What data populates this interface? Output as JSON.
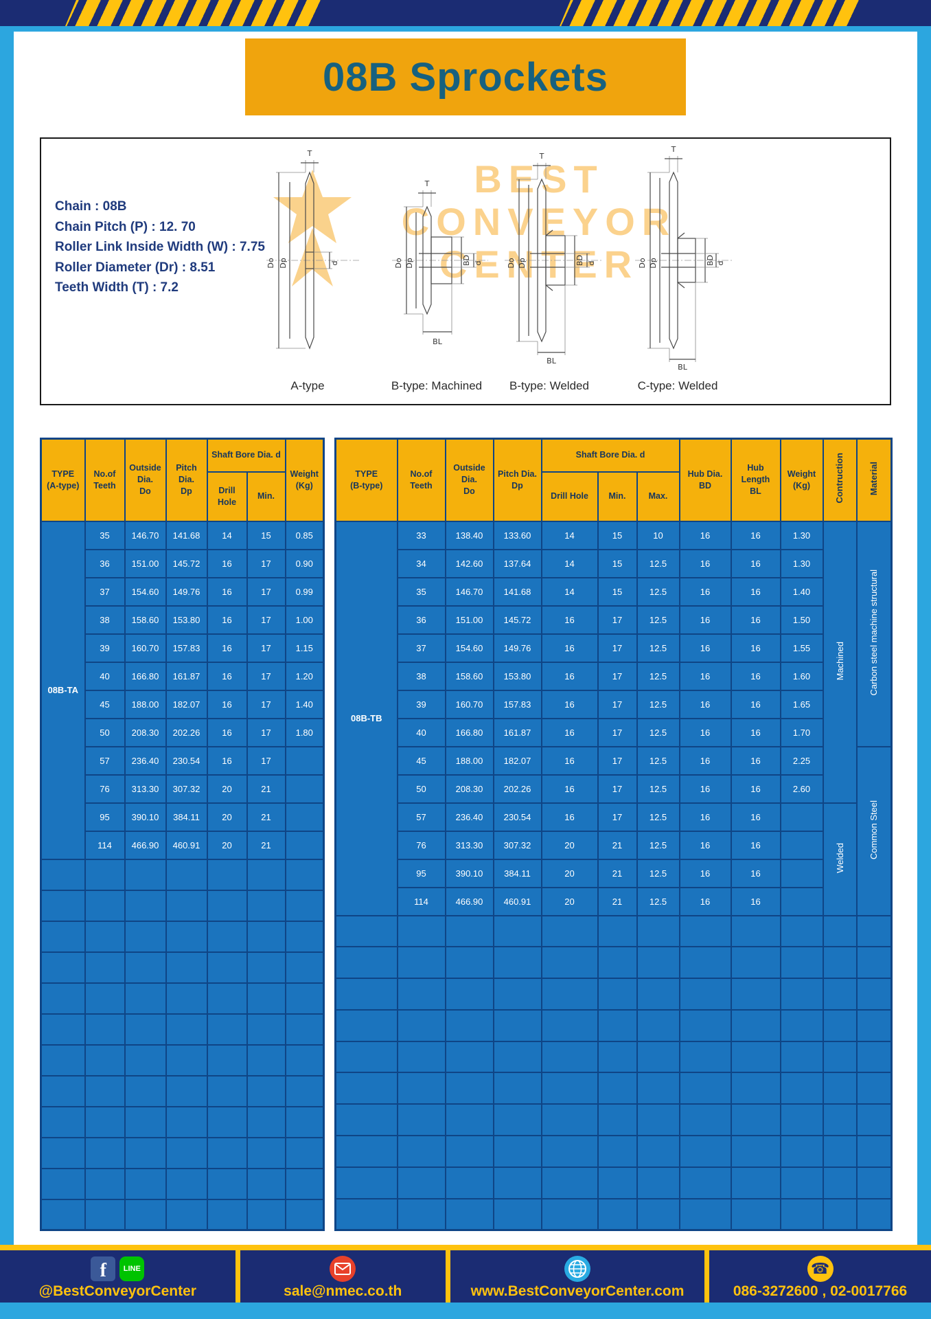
{
  "title": "08B Sprockets",
  "colors": {
    "accent_yellow": "#FFC20E",
    "navy": "#1B2C73",
    "table_blue": "#1B74BE",
    "grid_dark_blue": "#0F4586",
    "header_amber": "#F5B10C",
    "title_amber": "#F0A40D",
    "title_text": "#17617F",
    "background_blue": "#2CA6DF",
    "watermark_orange": "#F7A61B"
  },
  "specs": {
    "lines": [
      "Chain : 08B",
      "Chain Pitch (P) : 12. 70",
      "Roller Link Inside Width (W) : 7.75",
      "Roller Diameter (Dr) : 8.51",
      "Teeth Width (T) : 7.2"
    ]
  },
  "watermark": {
    "line1": "BEST",
    "line2": "CONVEYOR",
    "line3": "CENTER"
  },
  "diagrams": {
    "labels": [
      "A-type",
      "B-type: Machined",
      "B-type: Welded",
      "C-type: Welded"
    ],
    "dims": {
      "T": "T",
      "Do": "Do",
      "Dp": "Dp",
      "d": "d",
      "BD": "BD",
      "BL": "BL"
    }
  },
  "table_a": {
    "type_label": "08B-TA",
    "header": {
      "type": "TYPE\n(A-type)",
      "teeth": "No.of\nTeeth",
      "outside": "Outside\nDia.\nDo",
      "pitch": "Pitch Dia.\nDp",
      "shaft_bore": "Shaft Bore Dia. d",
      "drill_hole": "Drill Hole",
      "min": "Min.",
      "weight": "Weight\n(Kg)"
    },
    "rows": [
      [
        "35",
        "146.70",
        "141.68",
        "14",
        "15",
        "0.85"
      ],
      [
        "36",
        "151.00",
        "145.72",
        "16",
        "17",
        "0.90"
      ],
      [
        "37",
        "154.60",
        "149.76",
        "16",
        "17",
        "0.99"
      ],
      [
        "38",
        "158.60",
        "153.80",
        "16",
        "17",
        "1.00"
      ],
      [
        "39",
        "160.70",
        "157.83",
        "16",
        "17",
        "1.15"
      ],
      [
        "40",
        "166.80",
        "161.87",
        "16",
        "17",
        "1.20"
      ],
      [
        "45",
        "188.00",
        "182.07",
        "16",
        "17",
        "1.40"
      ],
      [
        "50",
        "208.30",
        "202.26",
        "16",
        "17",
        "1.80"
      ],
      [
        "57",
        "236.40",
        "230.54",
        "16",
        "17",
        ""
      ],
      [
        "76",
        "313.30",
        "307.32",
        "20",
        "21",
        ""
      ],
      [
        "95",
        "390.10",
        "384.11",
        "20",
        "21",
        ""
      ],
      [
        "114",
        "466.90",
        "460.91",
        "20",
        "21",
        ""
      ]
    ],
    "empty_row_count": 12
  },
  "table_b": {
    "type_label": "08B-TB",
    "header": {
      "type": "TYPE\n(B-type)",
      "teeth": "No.of\nTeeth",
      "outside": "Outside\nDia.\nDo",
      "pitch": "Pitch Dia.\nDp",
      "shaft_bore": "Shaft Bore Dia. d",
      "drill_hole": "Drill Hole",
      "min": "Min.",
      "max": "Max.",
      "hub_dia": "Hub Dia.\nBD",
      "hub_length": "Hub\nLength\nBL",
      "weight": "Weight\n(Kg)",
      "construction": "Contruction",
      "material": "Material"
    },
    "rows": [
      [
        "33",
        "138.40",
        "133.60",
        "14",
        "15",
        "10",
        "16",
        "16",
        "1.30"
      ],
      [
        "34",
        "142.60",
        "137.64",
        "14",
        "15",
        "12.5",
        "16",
        "16",
        "1.30"
      ],
      [
        "35",
        "146.70",
        "141.68",
        "14",
        "15",
        "12.5",
        "16",
        "16",
        "1.40"
      ],
      [
        "36",
        "151.00",
        "145.72",
        "16",
        "17",
        "12.5",
        "16",
        "16",
        "1.50"
      ],
      [
        "37",
        "154.60",
        "149.76",
        "16",
        "17",
        "12.5",
        "16",
        "16",
        "1.55"
      ],
      [
        "38",
        "158.60",
        "153.80",
        "16",
        "17",
        "12.5",
        "16",
        "16",
        "1.60"
      ],
      [
        "39",
        "160.70",
        "157.83",
        "16",
        "17",
        "12.5",
        "16",
        "16",
        "1.65"
      ],
      [
        "40",
        "166.80",
        "161.87",
        "16",
        "17",
        "12.5",
        "16",
        "16",
        "1.70"
      ],
      [
        "45",
        "188.00",
        "182.07",
        "16",
        "17",
        "12.5",
        "16",
        "16",
        "2.25"
      ],
      [
        "50",
        "208.30",
        "202.26",
        "16",
        "17",
        "12.5",
        "16",
        "16",
        "2.60"
      ],
      [
        "57",
        "236.40",
        "230.54",
        "16",
        "17",
        "12.5",
        "16",
        "16",
        ""
      ],
      [
        "76",
        "313.30",
        "307.32",
        "20",
        "21",
        "12.5",
        "16",
        "16",
        ""
      ],
      [
        "95",
        "390.10",
        "384.11",
        "20",
        "21",
        "12.5",
        "16",
        "16",
        ""
      ],
      [
        "114",
        "466.90",
        "460.91",
        "20",
        "21",
        "12.5",
        "16",
        "16",
        ""
      ]
    ],
    "construction_spans": [
      {
        "label": "Machined",
        "rows": 10
      },
      {
        "label": "Welded",
        "rows": 4
      }
    ],
    "material_spans": [
      {
        "label": "Carbon steel  machine structural",
        "rows": 8
      },
      {
        "label": "Common  Steel",
        "rows": 6
      }
    ],
    "empty_row_count": 10
  },
  "footer": {
    "facebook_letter": "f",
    "line_label": "LINE",
    "phone_glyph": "☎",
    "social": "@BestConveyorCenter",
    "email": "sale@nmec.co.th",
    "website": "www.BestConveyorCenter.com",
    "phone": "086-3272600 , 02-0017766"
  }
}
